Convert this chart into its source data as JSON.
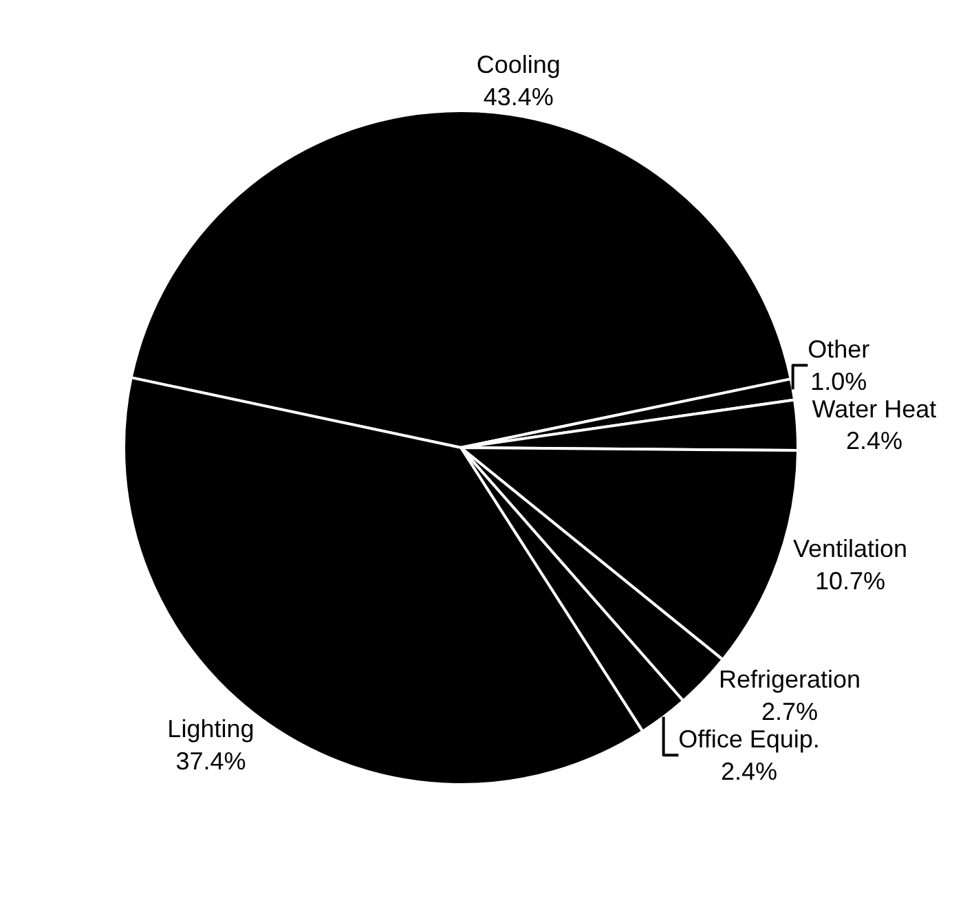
{
  "chart_data": {
    "type": "pie",
    "categories": [
      "Cooling",
      "Other",
      "Water Heat",
      "Ventilation",
      "Refrigeration",
      "Office Equip.",
      "Lighting"
    ],
    "values": [
      43.4,
      1.0,
      2.4,
      10.7,
      2.7,
      2.4,
      37.4
    ],
    "value_labels": [
      "43.4%",
      "1.0%",
      "2.4%",
      "10.7%",
      "2.7%",
      "2.4%",
      "37.4%"
    ],
    "colors": [
      "#000000",
      "#000000",
      "#000000",
      "#000000",
      "#000000",
      "#000000",
      "#000000"
    ],
    "legend": false
  }
}
